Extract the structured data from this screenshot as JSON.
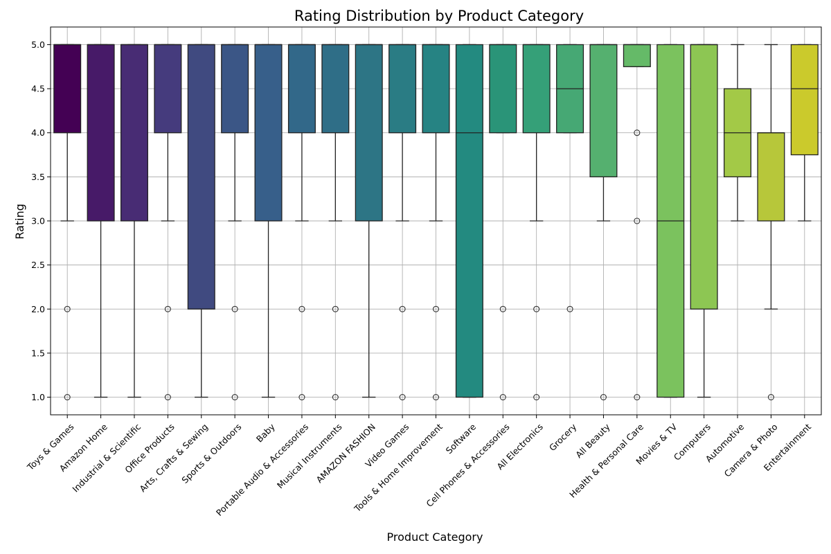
{
  "chart_data": {
    "type": "box",
    "title": "Rating Distribution by Product Category",
    "xlabel": "Product Category",
    "ylabel": "Rating",
    "ylim": [
      0.8,
      5.2
    ],
    "yticks": [
      "1.0",
      "1.5",
      "2.0",
      "2.5",
      "3.0",
      "3.5",
      "4.0",
      "4.5",
      "5.0"
    ],
    "grid": true,
    "palette": "viridis",
    "categories": [
      {
        "name": "Toys & Games",
        "q1": 4,
        "median": 5,
        "q3": 5,
        "whisker_low": 3,
        "whisker_high": 5,
        "outliers": [
          2,
          1
        ],
        "color": "#440154"
      },
      {
        "name": "Amazon Home",
        "q1": 3,
        "median": 5,
        "q3": 5,
        "whisker_low": 1,
        "whisker_high": 5,
        "outliers": [],
        "color": "#471a68"
      },
      {
        "name": "Industrial & Scientific",
        "q1": 3,
        "median": 5,
        "q3": 5,
        "whisker_low": 1,
        "whisker_high": 5,
        "outliers": [],
        "color": "#482c74"
      },
      {
        "name": "Office Products",
        "q1": 4,
        "median": 5,
        "q3": 5,
        "whisker_low": 3,
        "whisker_high": 5,
        "outliers": [
          2,
          1
        ],
        "color": "#453b7d"
      },
      {
        "name": "Arts, Crafts & Sewing",
        "q1": 2,
        "median": 5,
        "q3": 5,
        "whisker_low": 1,
        "whisker_high": 5,
        "outliers": [],
        "color": "#404a80"
      },
      {
        "name": "Sports & Outdoors",
        "q1": 4,
        "median": 5,
        "q3": 5,
        "whisker_low": 3,
        "whisker_high": 5,
        "outliers": [
          2,
          1
        ],
        "color": "#3b5686"
      },
      {
        "name": "Baby",
        "q1": 3,
        "median": 5,
        "q3": 5,
        "whisker_low": 1,
        "whisker_high": 5,
        "outliers": [],
        "color": "#375f8a"
      },
      {
        "name": "Portable Audio & Accessories",
        "q1": 4,
        "median": 5,
        "q3": 5,
        "whisker_low": 3,
        "whisker_high": 5,
        "outliers": [
          2,
          1
        ],
        "color": "#326889"
      },
      {
        "name": "Musical Instruments",
        "q1": 4,
        "median": 5,
        "q3": 5,
        "whisker_low": 3,
        "whisker_high": 5,
        "outliers": [
          2,
          1
        ],
        "color": "#2f6e87"
      },
      {
        "name": "AMAZON FASHION",
        "q1": 3,
        "median": 5,
        "q3": 5,
        "whisker_low": 1,
        "whisker_high": 5,
        "outliers": [],
        "color": "#2d7585"
      },
      {
        "name": "Video Games",
        "q1": 4,
        "median": 5,
        "q3": 5,
        "whisker_low": 3,
        "whisker_high": 5,
        "outliers": [
          2,
          1
        ],
        "color": "#2a7c84"
      },
      {
        "name": "Tools & Home Improvement",
        "q1": 4,
        "median": 5,
        "q3": 5,
        "whisker_low": 3,
        "whisker_high": 5,
        "outliers": [
          2,
          1
        ],
        "color": "#268383"
      },
      {
        "name": "Software",
        "q1": 1,
        "median": 4,
        "q3": 5,
        "whisker_low": 1,
        "whisker_high": 5,
        "outliers": [],
        "color": "#238a80"
      },
      {
        "name": "Cell Phones & Accessories",
        "q1": 4,
        "median": 5,
        "q3": 5,
        "whisker_low": 4,
        "whisker_high": 5,
        "outliers": [
          2,
          1
        ],
        "color": "#2a9478"
      },
      {
        "name": "All Electronics",
        "q1": 4,
        "median": 5,
        "q3": 5,
        "whisker_low": 3,
        "whisker_high": 5,
        "outliers": [
          2,
          1
        ],
        "color": "#35a078"
      },
      {
        "name": "Grocery",
        "q1": 4,
        "median": 4.5,
        "q3": 5,
        "whisker_low": 4,
        "whisker_high": 5,
        "outliers": [
          2
        ],
        "color": "#46a874"
      },
      {
        "name": "All Beauty",
        "q1": 3.5,
        "median": 5,
        "q3": 5,
        "whisker_low": 3,
        "whisker_high": 5,
        "outliers": [
          1
        ],
        "color": "#55b06f"
      },
      {
        "name": "Health & Personal Care",
        "q1": 4.75,
        "median": 5,
        "q3": 5,
        "whisker_low": 4.75,
        "whisker_high": 5,
        "outliers": [
          4,
          3,
          1
        ],
        "color": "#65ba68"
      },
      {
        "name": "Movies & TV",
        "q1": 1,
        "median": 3,
        "q3": 5,
        "whisker_low": 1,
        "whisker_high": 5,
        "outliers": [],
        "color": "#7bc25e"
      },
      {
        "name": "Computers",
        "q1": 2,
        "median": 5,
        "q3": 5,
        "whisker_low": 1,
        "whisker_high": 5,
        "outliers": [],
        "color": "#8dc653"
      },
      {
        "name": "Automotive",
        "q1": 3.5,
        "median": 4,
        "q3": 4.5,
        "whisker_low": 3,
        "whisker_high": 5,
        "outliers": [],
        "color": "#a3c947"
      },
      {
        "name": "Camera & Photo",
        "q1": 3,
        "median": 4,
        "q3": 4,
        "whisker_low": 2,
        "whisker_high": 5,
        "outliers": [
          1
        ],
        "color": "#b7c73a"
      },
      {
        "name": "Entertainment",
        "q1": 3.75,
        "median": 4.5,
        "q3": 5,
        "whisker_low": 3,
        "whisker_high": 5,
        "outliers": [],
        "color": "#cbca2c"
      }
    ]
  }
}
